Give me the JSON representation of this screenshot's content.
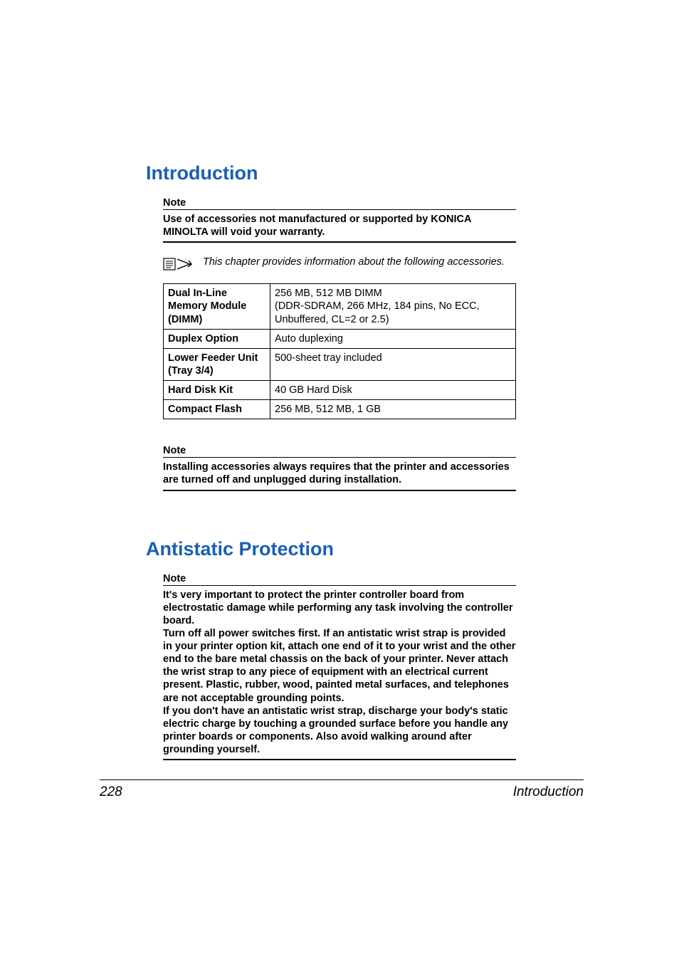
{
  "section1": {
    "heading": "Introduction",
    "heading_color": "#1a5fb4",
    "note1": {
      "label": "Note",
      "body": "Use of accessories not manufactured or supported by KONICA MINOLTA will void your warranty."
    },
    "callout": {
      "text": "This chapter provides information about the following accessories."
    },
    "table": {
      "rows": [
        {
          "k": "Dual In-Line Memory Module (DIMM)",
          "v": "256 MB, 512 MB DIMM\n(DDR-SDRAM, 266 MHz, 184 pins, No ECC, Unbuffered, CL=2 or 2.5)"
        },
        {
          "k": "Duplex Option",
          "v": "Auto duplexing"
        },
        {
          "k": "Lower Feeder Unit (Tray 3/4)",
          "v": "500-sheet tray included"
        },
        {
          "k": "Hard Disk Kit",
          "v": "40 GB Hard Disk"
        },
        {
          "k": "Compact Flash",
          "v": "256 MB, 512 MB, 1 GB"
        }
      ]
    },
    "note2": {
      "label": "Note",
      "body": "Installing accessories always requires that the printer and accessories are turned off and unplugged during installation."
    }
  },
  "section2": {
    "heading": "Antistatic Protection",
    "heading_color": "#1a5fb4",
    "note": {
      "label": "Note",
      "body": "It's very important to protect the printer controller board from electrostatic damage while performing any task involving the controller board.\nTurn off all power switches first. If an antistatic wrist strap is provided in your printer option kit, attach one end of it to your wrist and the other end to the bare metal chassis on the back of your printer. Never attach the wrist strap to any piece of equipment with an electrical current present. Plastic, rubber, wood, painted metal surfaces, and telephones are not acceptable grounding points.\nIf you don't have an antistatic wrist strap, discharge your body's static electric charge by touching a grounded surface before you handle any printer boards or components. Also avoid walking around after grounding yourself."
    }
  },
  "footer": {
    "page": "228",
    "title": "Introduction"
  }
}
